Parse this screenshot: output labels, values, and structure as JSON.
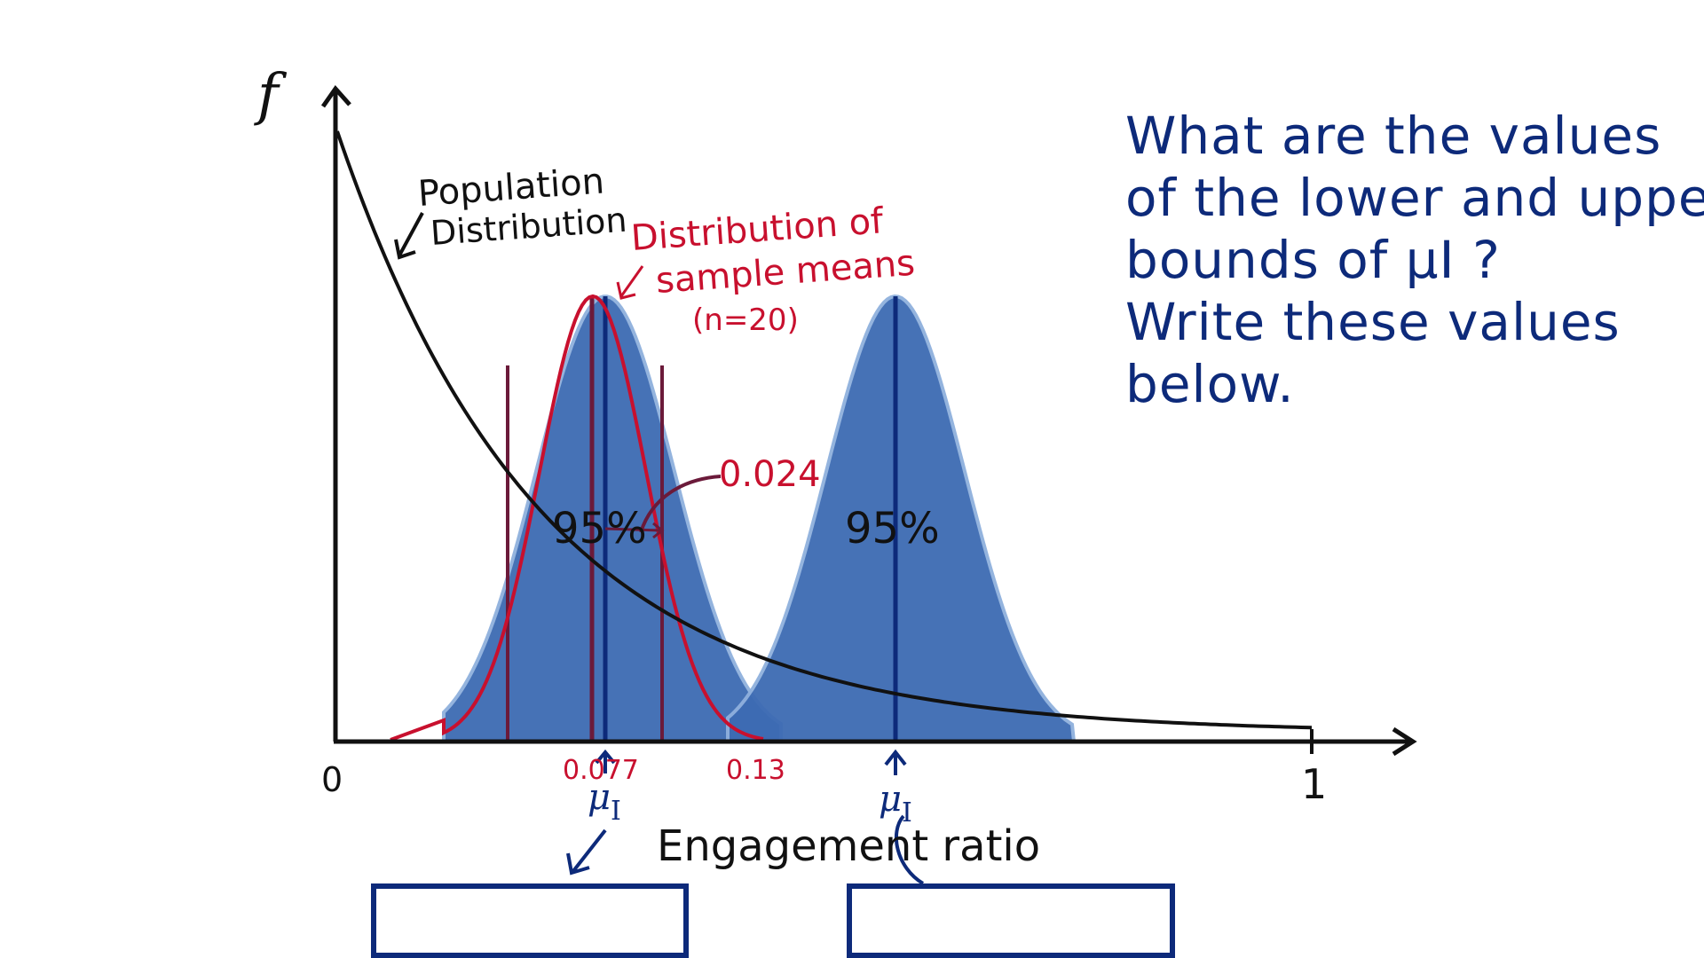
{
  "diagram": {
    "y_axis_label": "f",
    "x_origin_label": "0",
    "x_end_label": "1",
    "x_axis_title": "Engagement ratio",
    "population_label_line1": "Population",
    "population_label_line2": "Distribution",
    "sample_dist_label_line1": "Distribution of",
    "sample_dist_label_line2": "sample means",
    "sample_dist_label_line3": "(n=20)",
    "se_label": "0.024",
    "percent_left": "95%",
    "percent_right": "95%",
    "tick_mean": "0.077",
    "tick_013": "0.13",
    "mu_left": "μ",
    "mu_left_sub": "I",
    "mu_right": "μ",
    "mu_right_sub": "I",
    "colors": {
      "population": "#111111",
      "sample": "#c8102e",
      "shaded": "#3d6bb3",
      "ink_blue": "#0d2a7a"
    }
  },
  "question": {
    "line1": "What are the values",
    "line2": "of the lower and upper",
    "line3": "bounds of μI ?",
    "line4": "Write these values",
    "line5": "below."
  },
  "answers": {
    "lower_value": "",
    "upper_value": ""
  }
}
